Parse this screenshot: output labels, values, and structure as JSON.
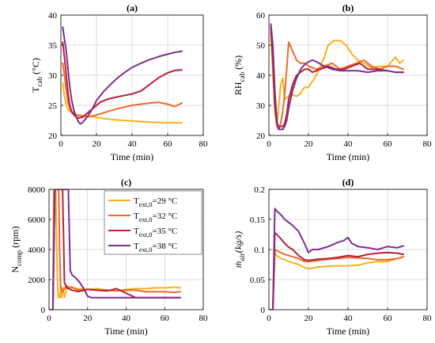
{
  "colors": {
    "s29": "#F5B21B",
    "s32": "#EE6A2A",
    "s35": "#B81F3A",
    "s38": "#7E2F8E"
  },
  "chart_data": [
    {
      "id": "a",
      "type": "line",
      "title": "(a)",
      "xlabel": "Time (min)",
      "ylabel_main": "T",
      "ylabel_sub": "cab",
      "ylabel_unit": " (°C)",
      "xlim": [
        0,
        80
      ],
      "ylim": [
        20,
        40
      ],
      "xticks": [
        "0",
        "20",
        "40",
        "60",
        "80"
      ],
      "yticks": [
        "20",
        "25",
        "30",
        "35",
        "40"
      ],
      "grid": true,
      "series": [
        {
          "color_key": "s29",
          "x": [
            1,
            2,
            3,
            4,
            6,
            8,
            12,
            16,
            20,
            30,
            40,
            50,
            60,
            68
          ],
          "y": [
            28.7,
            26.5,
            25,
            24.3,
            23.8,
            23.5,
            23.3,
            23.2,
            23,
            22.6,
            22.4,
            22.2,
            22.1,
            22.1
          ]
        },
        {
          "color_key": "s32",
          "x": [
            1,
            2,
            3,
            4,
            5,
            6,
            8,
            10,
            12,
            16,
            20,
            30,
            40,
            50,
            55,
            60,
            64,
            68
          ],
          "y": [
            32,
            30,
            27.5,
            25.5,
            24.5,
            24,
            23.5,
            23.3,
            23.2,
            23.1,
            23.4,
            24.3,
            25,
            25.4,
            25.5,
            25.2,
            24.8,
            25.4
          ]
        },
        {
          "color_key": "s35",
          "x": [
            1,
            2,
            3,
            4,
            5,
            6,
            7,
            8,
            9,
            10,
            12,
            14,
            18,
            22,
            26,
            30,
            35,
            40,
            45,
            50,
            55,
            60,
            64,
            68
          ],
          "y": [
            35.5,
            33,
            30,
            27,
            25,
            24,
            23.5,
            23.2,
            23,
            22.9,
            23,
            23.5,
            24.5,
            25.5,
            26,
            26.3,
            26.6,
            26.9,
            27.4,
            28.5,
            29.6,
            30.4,
            30.8,
            30.9
          ]
        },
        {
          "color_key": "s38",
          "x": [
            1,
            2,
            3,
            4,
            5,
            6,
            7,
            8,
            9,
            10,
            11,
            12,
            14,
            16,
            18,
            20,
            24,
            28,
            32,
            36,
            40,
            45,
            50,
            55,
            60,
            64,
            68
          ],
          "y": [
            38,
            36,
            34,
            31,
            28,
            26,
            24.5,
            23.5,
            22.8,
            22.2,
            21.9,
            22.1,
            22.8,
            23.6,
            24.6,
            25.8,
            27.3,
            28.5,
            29.6,
            30.5,
            31.3,
            32,
            32.6,
            33.1,
            33.5,
            33.8,
            34
          ]
        }
      ]
    },
    {
      "id": "b",
      "type": "line",
      "title": "(b)",
      "xlabel": "Time (min)",
      "ylabel_main": "RH",
      "ylabel_sub": "cab",
      "ylabel_unit": " (%)",
      "xlim": [
        0,
        80
      ],
      "ylim": [
        20,
        60
      ],
      "xticks": [
        "0",
        "20",
        "40",
        "60",
        "80"
      ],
      "yticks": [
        "20",
        "30",
        "40",
        "50",
        "60"
      ],
      "grid": true,
      "series": [
        {
          "color_key": "s29",
          "x": [
            1,
            2,
            3,
            4,
            5,
            6,
            7,
            8,
            10,
            12,
            14,
            16,
            18,
            20,
            24,
            28,
            30,
            33,
            36,
            39,
            42,
            45,
            48,
            52,
            56,
            60,
            64,
            66,
            68
          ],
          "y": [
            54,
            40,
            28,
            23,
            30,
            37,
            39,
            32,
            33,
            33.5,
            33,
            34,
            36,
            36,
            40,
            46,
            50,
            51.5,
            51.5,
            50,
            47,
            45,
            44,
            42.5,
            43,
            43,
            46,
            44,
            45
          ]
        },
        {
          "color_key": "s32",
          "x": [
            1,
            2,
            3,
            4,
            5,
            6,
            7,
            8,
            9,
            10,
            12,
            14,
            16,
            18,
            20,
            24,
            28,
            32,
            36,
            40,
            44,
            48,
            52,
            56,
            60,
            64,
            68
          ],
          "y": [
            55,
            45,
            32,
            23,
            22,
            24,
            28,
            34,
            42,
            51,
            48,
            45,
            44,
            44,
            43,
            42,
            43,
            44,
            42,
            43,
            44,
            45,
            43,
            42,
            43,
            43,
            42
          ]
        },
        {
          "color_key": "s35",
          "x": [
            1,
            2,
            3,
            4,
            5,
            6,
            7,
            8,
            9,
            10,
            12,
            14,
            16,
            18,
            20,
            22,
            26,
            30,
            34,
            38,
            42,
            46,
            50,
            55,
            60,
            64,
            68
          ],
          "y": [
            56,
            45,
            30,
            24,
            23,
            23,
            23,
            24,
            27,
            32,
            37,
            40,
            41,
            42,
            42,
            41,
            42,
            43,
            42,
            42,
            43,
            44,
            42,
            42,
            41.5,
            41,
            41
          ]
        },
        {
          "color_key": "s38",
          "x": [
            1,
            2,
            3,
            4,
            5,
            6,
            7,
            8,
            9,
            10,
            12,
            14,
            16,
            18,
            20,
            22,
            24,
            28,
            32,
            36,
            40,
            45,
            50,
            55,
            60,
            64,
            68
          ],
          "y": [
            57,
            50,
            35,
            25,
            22,
            22,
            22,
            23,
            25,
            29,
            35,
            39,
            42,
            43.5,
            44.5,
            45,
            44.5,
            43,
            42,
            41.5,
            41.5,
            41.5,
            41,
            41.5,
            41.5,
            41,
            41
          ]
        }
      ]
    },
    {
      "id": "c",
      "type": "line",
      "title": "(c)",
      "xlabel": "Time (min)",
      "ylabel_main": "N",
      "ylabel_sub": "comp",
      "ylabel_unit": " (rpm)",
      "xlim": [
        0,
        80
      ],
      "ylim": [
        0,
        8000
      ],
      "xticks": [
        "0",
        "20",
        "40",
        "60",
        "80"
      ],
      "yticks": [
        "0",
        "2000",
        "4000",
        "6000",
        "8000"
      ],
      "grid": true,
      "legend": {
        "placement": "upper-right",
        "entries": [
          {
            "main": "T",
            "sub": "ext,0",
            "rest": "=29 °C",
            "color_key": "s29"
          },
          {
            "main": "T",
            "sub": "ext,0",
            "rest": "=32 °C",
            "color_key": "s32"
          },
          {
            "main": "T",
            "sub": "ext,0",
            "rest": "=35 °C",
            "color_key": "s35"
          },
          {
            "main": "T",
            "sub": "ext,0",
            "rest": "=38 °C",
            "color_key": "s38"
          }
        ]
      },
      "series": [
        {
          "color_key": "s29",
          "x": [
            1,
            2,
            3,
            3.5,
            4,
            4.5,
            5,
            5.5,
            6,
            6.5,
            7,
            8,
            9,
            10,
            12,
            15,
            20,
            25,
            30,
            35,
            40,
            45,
            50,
            55,
            60,
            65,
            68
          ],
          "y": [
            0,
            0,
            8000,
            8000,
            4000,
            1200,
            800,
            800,
            1600,
            800,
            1500,
            800,
            1400,
            1500,
            1450,
            1400,
            1350,
            1400,
            1300,
            1250,
            1350,
            1400,
            1400,
            1450,
            1450,
            1500,
            1450
          ]
        },
        {
          "color_key": "s32",
          "x": [
            1,
            2,
            2.5,
            3,
            4,
            5,
            5.5,
            6,
            7,
            8,
            9,
            10,
            12,
            15,
            20,
            25,
            30,
            35,
            40,
            45,
            50,
            55,
            60,
            65,
            68
          ],
          "y": [
            0,
            0,
            8000,
            8000,
            8000,
            8000,
            4000,
            1500,
            1200,
            1400,
            1600,
            1500,
            1500,
            1300,
            1350,
            1300,
            1300,
            1250,
            1300,
            1300,
            1200,
            1200,
            1200,
            1150,
            1200
          ]
        },
        {
          "color_key": "s35",
          "x": [
            1,
            2,
            3,
            4,
            5,
            6,
            7,
            7.5,
            8,
            9,
            10,
            12,
            15,
            20,
            25,
            30,
            35,
            40,
            45,
            50,
            55,
            60,
            65,
            68
          ],
          "y": [
            0,
            0,
            8000,
            8000,
            8000,
            8000,
            8000,
            5000,
            1800,
            1500,
            1400,
            1300,
            1200,
            1350,
            1300,
            1250,
            1400,
            1100,
            800,
            800,
            800,
            800,
            800,
            800
          ]
        },
        {
          "color_key": "s38",
          "x": [
            1,
            2,
            3,
            4,
            6,
            8,
            10,
            11,
            12,
            14,
            16,
            18,
            20,
            22,
            25,
            30,
            35,
            40,
            50,
            60,
            68
          ],
          "y": [
            0,
            0,
            8000,
            8000,
            8000,
            8000,
            8000,
            2600,
            2300,
            2100,
            1800,
            1400,
            900,
            800,
            800,
            800,
            800,
            800,
            800,
            800,
            800
          ]
        }
      ]
    },
    {
      "id": "d",
      "type": "line",
      "title": "(d)",
      "xlabel": "Time (min)",
      "ylabel_main": "ṁ",
      "ylabel_sub": "air",
      "ylabel_unit": "(kg/s)",
      "xlim": [
        0,
        80
      ],
      "ylim": [
        0,
        0.2
      ],
      "xticks": [
        "0",
        "20",
        "40",
        "60",
        "80"
      ],
      "yticks": [
        "0",
        "0.05",
        "0.1",
        "0.15",
        "0.2"
      ],
      "grid": true,
      "series": [
        {
          "color_key": "s29",
          "x": [
            1,
            2,
            3,
            4,
            6,
            8,
            10,
            12,
            15,
            18,
            20,
            25,
            30,
            35,
            40,
            45,
            50,
            55,
            60,
            65,
            68
          ],
          "y": [
            0,
            0,
            0.095,
            0.09,
            0.085,
            0.083,
            0.08,
            0.078,
            0.075,
            0.07,
            0.068,
            0.071,
            0.072,
            0.073,
            0.073,
            0.074,
            0.078,
            0.08,
            0.08,
            0.085,
            0.088
          ]
        },
        {
          "color_key": "s32",
          "x": [
            1,
            2,
            3,
            4,
            6,
            8,
            10,
            12,
            15,
            18,
            20,
            25,
            30,
            35,
            40,
            45,
            50,
            55,
            60,
            65,
            68
          ],
          "y": [
            0,
            0,
            0.1,
            0.098,
            0.095,
            0.092,
            0.09,
            0.088,
            0.085,
            0.08,
            0.08,
            0.082,
            0.084,
            0.085,
            0.087,
            0.086,
            0.085,
            0.083,
            0.083,
            0.085,
            0.088
          ]
        },
        {
          "color_key": "s35",
          "x": [
            1,
            2,
            3,
            4,
            6,
            8,
            10,
            12,
            15,
            18,
            20,
            25,
            30,
            35,
            40,
            45,
            50,
            55,
            60,
            65,
            68
          ],
          "y": [
            0,
            0,
            0.128,
            0.125,
            0.118,
            0.11,
            0.104,
            0.1,
            0.09,
            0.083,
            0.082,
            0.084,
            0.085,
            0.087,
            0.09,
            0.088,
            0.092,
            0.094,
            0.095,
            0.094,
            0.092
          ]
        },
        {
          "color_key": "s38",
          "x": [
            1,
            2,
            3,
            4,
            6,
            8,
            10,
            12,
            15,
            18,
            20,
            22,
            25,
            30,
            35,
            38,
            40,
            42,
            45,
            50,
            55,
            60,
            65,
            68
          ],
          "y": [
            0,
            0,
            0.168,
            0.164,
            0.158,
            0.15,
            0.145,
            0.14,
            0.13,
            0.11,
            0.095,
            0.1,
            0.1,
            0.105,
            0.112,
            0.115,
            0.12,
            0.11,
            0.105,
            0.103,
            0.1,
            0.105,
            0.103,
            0.106
          ]
        }
      ]
    }
  ]
}
